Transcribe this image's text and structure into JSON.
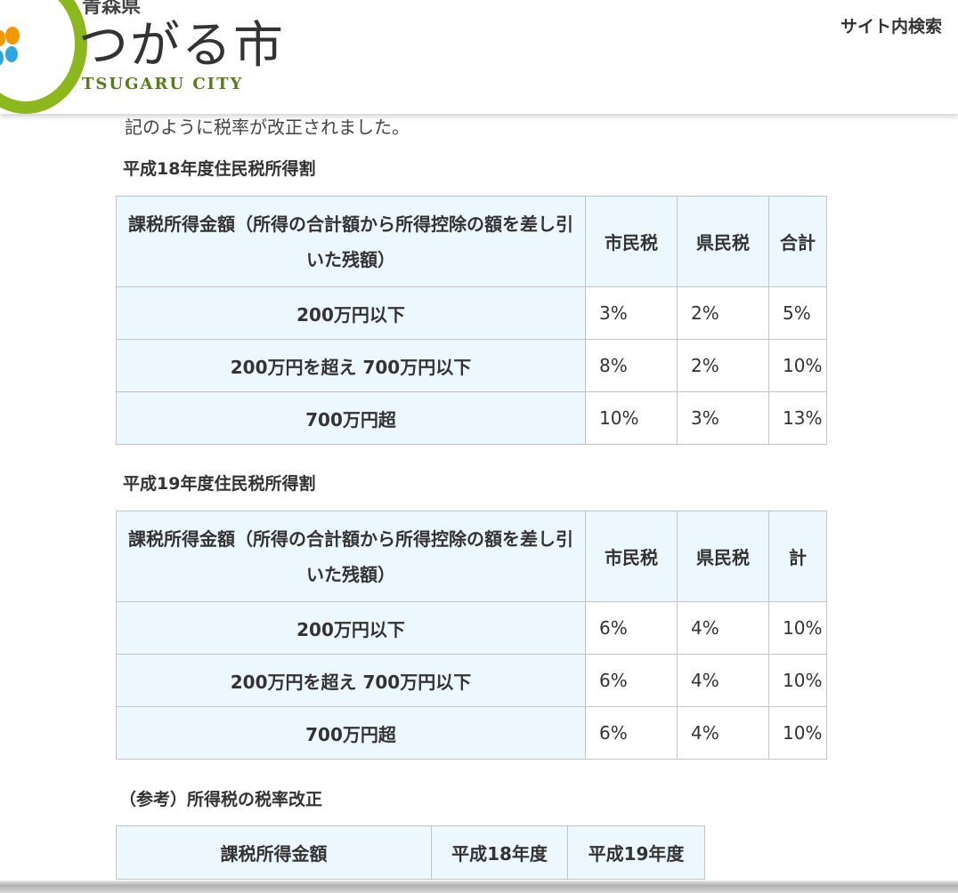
{
  "header": {
    "pref": "青森県",
    "city": "つがる市",
    "city_en": "TSUGARU CITY",
    "search_label": "サイト内検索"
  },
  "intro_cut": "記のように税率が改正されました。",
  "tables": [
    {
      "title": "平成18年度住民税所得割",
      "headers": [
        "課税所得金額（所得の合計額から所得控除の額を差し引いた残額）",
        "市民税",
        "県民税",
        "合計"
      ],
      "rows": [
        [
          "200万円以下",
          "3%",
          "2%",
          "5%"
        ],
        [
          "200万円を超え 700万円以下",
          "8%",
          "2%",
          "10%"
        ],
        [
          "700万円超",
          "10%",
          "3%",
          "13%"
        ]
      ]
    },
    {
      "title": "平成19年度住民税所得割",
      "headers": [
        "課税所得金額（所得の合計額から所得控除の額を差し引いた残額）",
        "市民税",
        "県民税",
        "計"
      ],
      "rows": [
        [
          "200万円以下",
          "6%",
          "4%",
          "10%"
        ],
        [
          "200万円を超え 700万円以下",
          "6%",
          "4%",
          "10%"
        ],
        [
          "700万円超",
          "6%",
          "4%",
          "10%"
        ]
      ]
    },
    {
      "title": "（参考）所得税の税率改正",
      "headers": [
        "課税所得金額",
        "平成18年度",
        "平成19年度"
      ],
      "rows": []
    }
  ]
}
